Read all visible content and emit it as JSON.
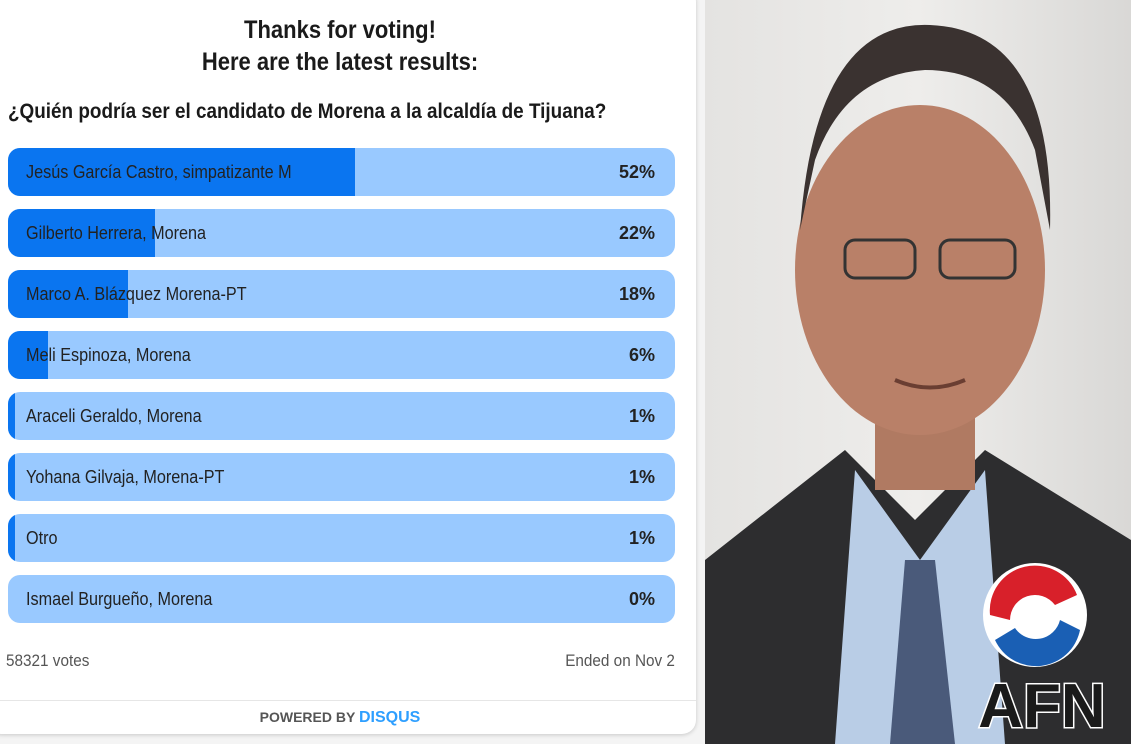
{
  "poll": {
    "heading_line1": "Thanks for voting!",
    "heading_line2": "Here are the latest results:",
    "question": "¿Quién podría ser el candidato de Morena a la alcaldía de Tijuana?",
    "options": [
      {
        "label": "Jesús García Castro, simpatizante M",
        "percent_label": "52%",
        "percent": 52
      },
      {
        "label": "Gilberto Herrera, Morena",
        "percent_label": "22%",
        "percent": 22
      },
      {
        "label": "Marco A. Blázquez Morena-PT",
        "percent_label": "18%",
        "percent": 18
      },
      {
        "label": "Meli Espinoza, Morena",
        "percent_label": "6%",
        "percent": 6
      },
      {
        "label": "Araceli Geraldo, Morena",
        "percent_label": "1%",
        "percent": 1
      },
      {
        "label": "Yohana Gilvaja, Morena-PT",
        "percent_label": "1%",
        "percent": 1
      },
      {
        "label": "Otro",
        "percent_label": "1%",
        "percent": 1
      },
      {
        "label": "Ismael Burgueño, Morena",
        "percent_label": "0%",
        "percent": 0
      }
    ],
    "votes": "58321 votes",
    "ended": "Ended on Nov 2",
    "powered_by": "POWERED BY",
    "brand": "DISQUS"
  },
  "photo": {
    "logo_text": "AFN"
  },
  "colors": {
    "bar_fill": "#0a75f0",
    "bar_track": "#99c9ff",
    "brand": "#2e9fff",
    "logo_red": "#d8202a",
    "logo_blue": "#1a5fb4"
  }
}
